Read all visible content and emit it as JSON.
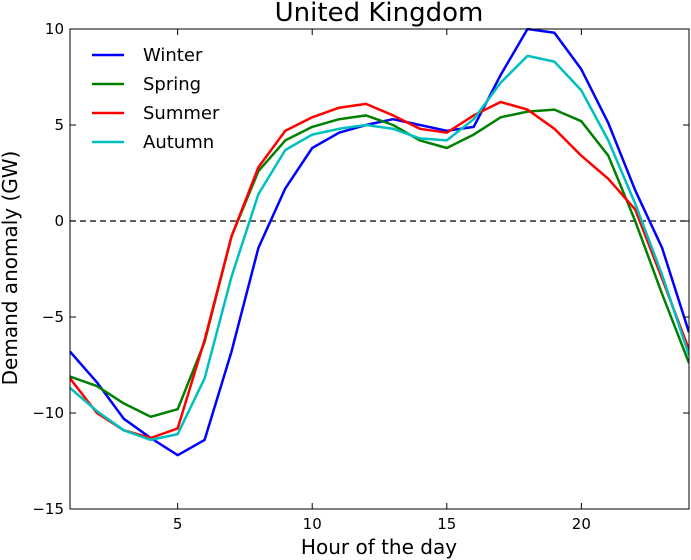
{
  "chart_data": {
    "type": "line",
    "title": "United Kingdom",
    "xlabel": "Hour of the day",
    "ylabel": "Demand anomaly (GW)",
    "xlim": [
      1,
      24
    ],
    "ylim": [
      -15,
      10
    ],
    "xticks": [
      5,
      10,
      15,
      20
    ],
    "yticks": [
      -15,
      -10,
      -5,
      0,
      5,
      10
    ],
    "reference_line": {
      "y": 0,
      "style": "dashed",
      "color": "#000000"
    },
    "grid": false,
    "legend_position": "top-left",
    "x": [
      1,
      2,
      3,
      4,
      5,
      6,
      7,
      8,
      9,
      10,
      11,
      12,
      13,
      14,
      15,
      16,
      17,
      18,
      19,
      20,
      21,
      22,
      23,
      24
    ],
    "series": [
      {
        "name": "Winter",
        "color": "#0000ff",
        "values": [
          -6.8,
          -8.4,
          -10.3,
          -11.3,
          -12.2,
          -11.4,
          -6.8,
          -1.4,
          1.7,
          3.8,
          4.6,
          5.0,
          5.3,
          5.0,
          4.7,
          4.9,
          7.6,
          10.0,
          9.8,
          7.9,
          5.1,
          1.6,
          -1.4,
          -5.8
        ]
      },
      {
        "name": "Spring",
        "color": "#008000",
        "values": [
          -8.1,
          -8.6,
          -9.5,
          -10.2,
          -9.8,
          -6.3,
          -0.8,
          2.6,
          4.2,
          4.9,
          5.3,
          5.5,
          5.0,
          4.2,
          3.8,
          4.5,
          5.4,
          5.7,
          5.8,
          5.2,
          3.4,
          0.0,
          -3.8,
          -7.4
        ]
      },
      {
        "name": "Summer",
        "color": "#ff0000",
        "values": [
          -8.2,
          -10.0,
          -10.9,
          -11.3,
          -10.8,
          -6.2,
          -0.8,
          2.8,
          4.7,
          5.4,
          5.9,
          6.1,
          5.5,
          4.8,
          4.6,
          5.5,
          6.2,
          5.8,
          4.8,
          3.4,
          2.2,
          0.6,
          -3.0,
          -6.7
        ]
      },
      {
        "name": "Autumn",
        "color": "#00bfbf",
        "values": [
          -8.7,
          -9.9,
          -10.9,
          -11.4,
          -11.1,
          -8.2,
          -2.9,
          1.4,
          3.7,
          4.5,
          4.8,
          5.0,
          4.8,
          4.3,
          4.2,
          5.3,
          7.2,
          8.6,
          8.3,
          6.8,
          4.2,
          0.9,
          -2.8,
          -7.0
        ]
      }
    ]
  }
}
